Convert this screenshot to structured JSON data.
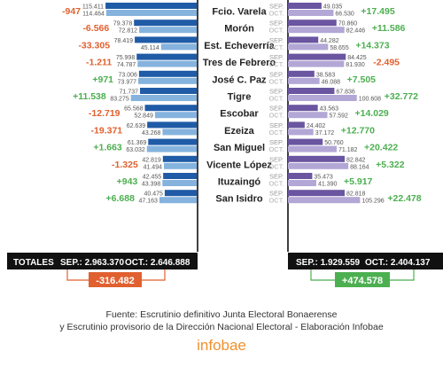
{
  "chart_data": {
    "type": "bar",
    "categories": [
      "Fcio. Varela",
      "Morón",
      "Est. Echeverría",
      "Tres de Febrero",
      "José C. Paz",
      "Tigre",
      "Escobar",
      "Ezeiza",
      "San Miguel",
      "Vicente López",
      "Ituzaingó",
      "San Isidro"
    ],
    "left": {
      "series": [
        {
          "name": "SEP.",
          "values": [
            115411,
            79378,
            78419,
            75998,
            73006,
            71737,
            65568,
            62639,
            61369,
            42819,
            42455,
            40475
          ]
        },
        {
          "name": "OCT.",
          "values": [
            114464,
            72812,
            45114,
            74787,
            73977,
            83275,
            52849,
            43268,
            63032,
            41494,
            43398,
            47163
          ]
        }
      ],
      "deltas": [
        "-947",
        "-6.566",
        "-33.305",
        "-1.211",
        "+971",
        "+11.538",
        "-12.719",
        "-19.371",
        "+1.663",
        "-1.325",
        "+943",
        "+6.688"
      ],
      "total_label": "TOTALES",
      "sep_total": "SEP.: 2.963.370",
      "oct_total": "OCT.: 2.646.888",
      "total_delta": "-316.482"
    },
    "right": {
      "series": [
        {
          "name": "SEP.",
          "values": [
            49035,
            70860,
            44282,
            84425,
            38583,
            67836,
            43563,
            24402,
            50760,
            82842,
            35473,
            82818
          ]
        },
        {
          "name": "OCT.",
          "values": [
            66530,
            82446,
            58655,
            81930,
            46088,
            100608,
            57592,
            37172,
            71182,
            88164,
            41390,
            105296
          ]
        }
      ],
      "deltas": [
        "+17.495",
        "+11.586",
        "+14.373",
        "-2.495",
        "+7.505",
        "+32.772",
        "+14.029",
        "+12.770",
        "+20.422",
        "+5.322",
        "+5.917",
        "+22.478"
      ],
      "sep_total": "SEP.: 1.929.559",
      "oct_total": "OCT.: 2.404.137",
      "total_delta": "+474.578"
    },
    "side_label_sep": "SEP.",
    "side_label_oct": "OCT.",
    "colors": {
      "left_sep": "#1f5ba6",
      "left_oct": "#85b3de",
      "right_sep": "#6a55a0",
      "right_oct": "#b3a7d6",
      "negative": "#e0602f",
      "positive": "#4caf50",
      "totals_bg": "#111111"
    }
  },
  "source_line1": "Fuente: Escrutinio definitivo Junta Electoral Bonaerense",
  "source_line2": "y Escrutinio provisorio de la Dirección Nacional Electoral - Elaboración Infobae",
  "logo_text": "infobae"
}
